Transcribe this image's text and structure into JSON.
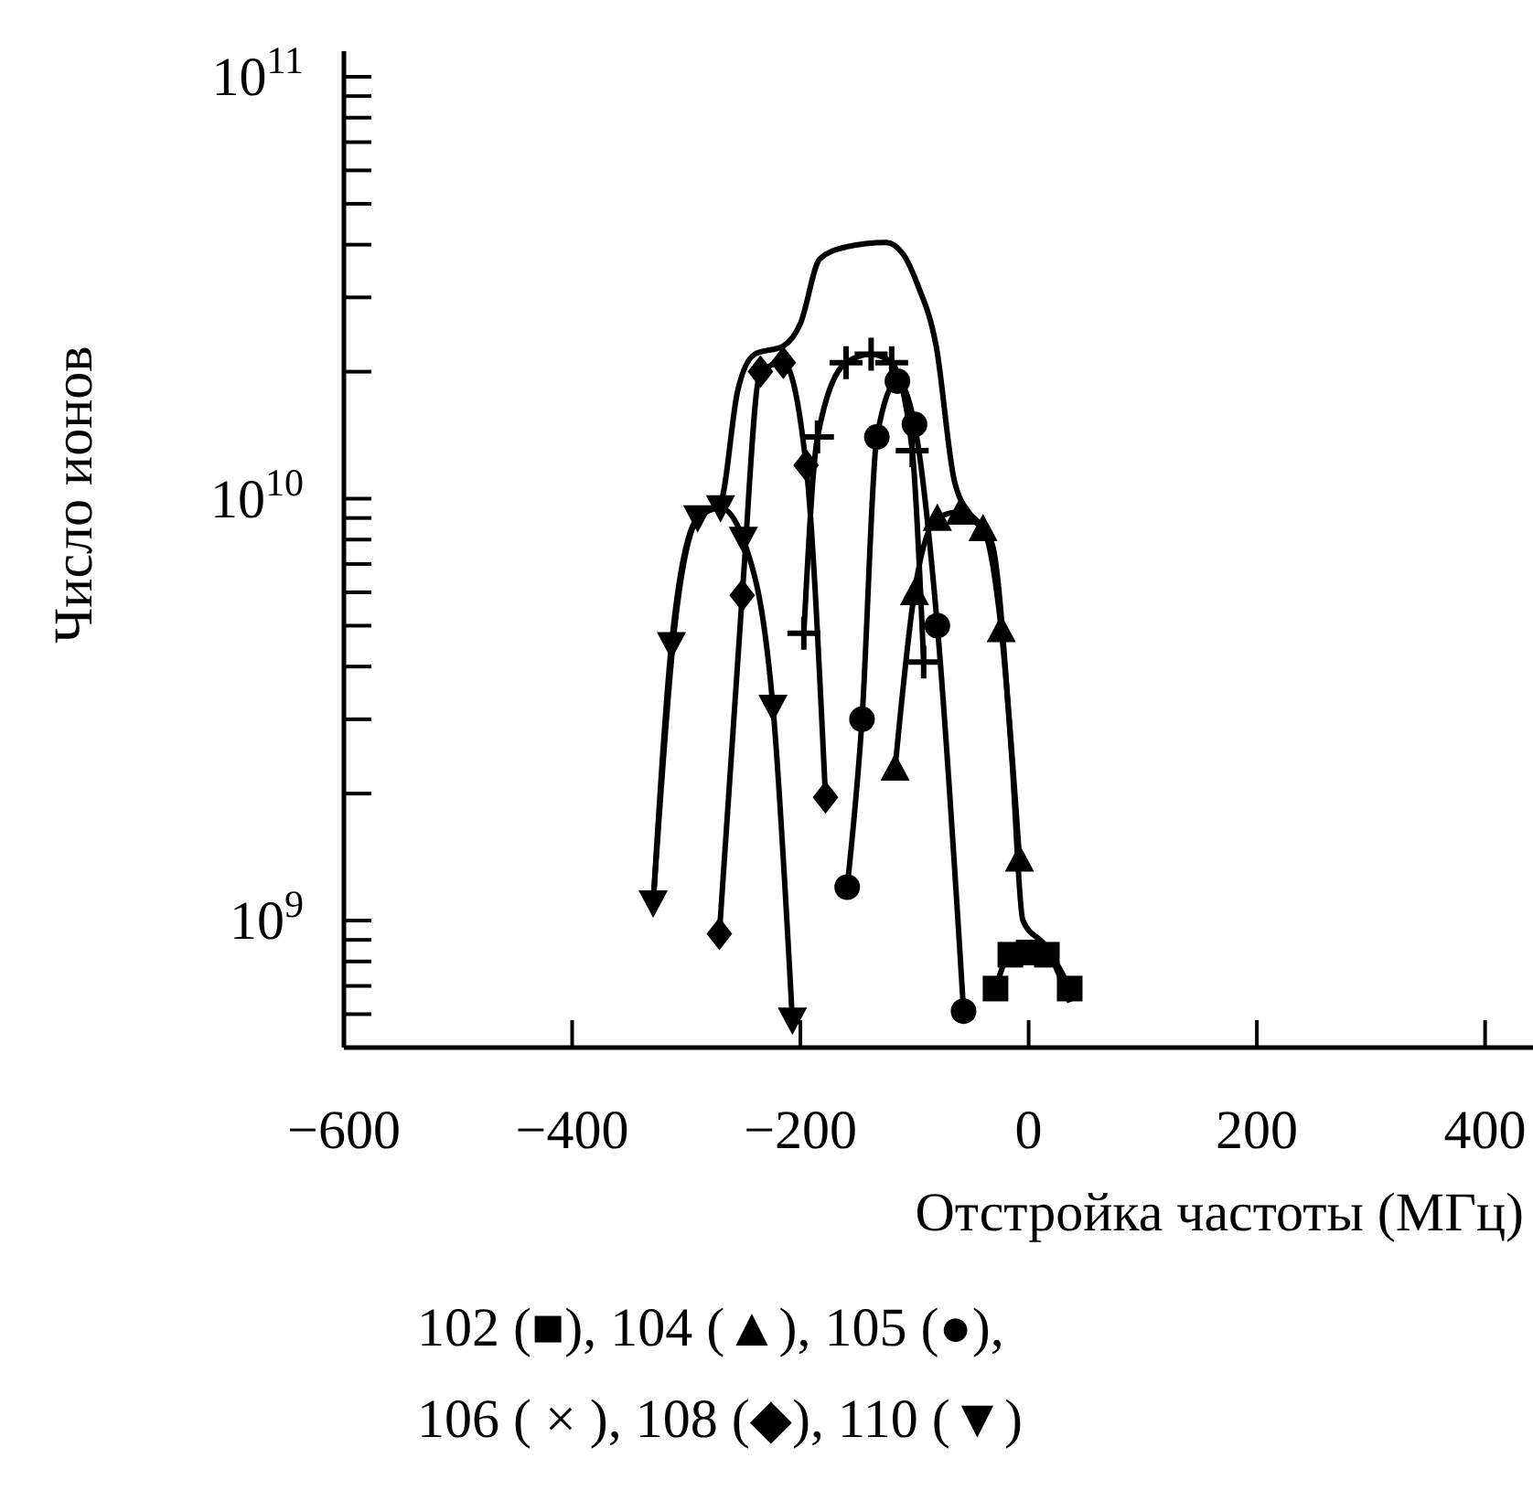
{
  "chart_data": {
    "type": "line",
    "xlabel": "Отстройка частоты (МГц)",
    "ylabel": "Число ионов",
    "log": "y",
    "grid": false,
    "xlim": [
      -600,
      450
    ],
    "xticks": [
      {
        "value": -600,
        "label": "−600"
      },
      {
        "value": -400,
        "label": "−400"
      },
      {
        "value": -200,
        "label": "−200"
      },
      0,
      200,
      400
    ],
    "ylim": [
      500000000.0,
      115000000000.0
    ],
    "yticks": [
      {
        "value": 600000000.0,
        "label": null
      },
      {
        "value": 700000000.0,
        "label": null
      },
      {
        "value": 800000000.0,
        "label": null
      },
      {
        "value": 900000000.0,
        "label": null
      },
      {
        "value": 1000000000.0,
        "label": "10$^{9}$"
      },
      {
        "value": 2000000000.0,
        "label": null
      },
      {
        "value": 3000000000.0,
        "label": null
      },
      {
        "value": 4000000000.0,
        "label": null
      },
      {
        "value": 5000000000.0,
        "label": null
      },
      {
        "value": 6000000000.0,
        "label": null
      },
      {
        "value": 7000000000.0,
        "label": null
      },
      {
        "value": 8000000000.0,
        "label": null
      },
      {
        "value": 9000000000.0,
        "label": null
      },
      {
        "value": 10000000000.0,
        "label": "10$^{10}$"
      },
      {
        "value": 20000000000.0,
        "label": null
      },
      {
        "value": 30000000000.0,
        "label": null
      },
      {
        "value": 40000000000.0,
        "label": null
      },
      {
        "value": 50000000000.0,
        "label": null
      },
      {
        "value": 60000000000.0,
        "label": null
      },
      {
        "value": 70000000000.0,
        "label": null
      },
      {
        "value": 80000000000.0,
        "label": null
      },
      {
        "value": 90000000000.0,
        "label": null
      },
      {
        "value": 100000000000.0,
        "label": "10$^{11}$"
      }
    ],
    "series": [
      {
        "color": "#000000",
        "marker": "none",
        "x": [
          -329,
          -310,
          -290,
          -270,
          -255,
          -240,
          -215,
          -200,
          -183,
          -160,
          -125,
          -110,
          -97,
          -81,
          -65,
          -49,
          -32,
          -15,
          -5,
          16,
          36
        ],
        "values": [
          1100000000.0,
          5000000000.0,
          9000000000.0,
          9800000000.0,
          18000000000.0,
          22000000000.0,
          23000000000.0,
          26000000000.0,
          37000000000.0,
          39500000000.0,
          40500000000.0,
          38000000000.0,
          32000000000.0,
          23000000000.0,
          11000000000.0,
          9000000000.0,
          7800000000.0,
          2500000000.0,
          1000000000.0,
          860000000.0,
          640000000.0
        ]
      },
      {
        "color": "#000000",
        "marker": "square",
        "x": [
          -29,
          -16,
          0,
          16,
          36
        ],
        "values": [
          690000000.0,
          830000000.0,
          840000000.0,
          830000000.0,
          690000000.0
        ]
      },
      {
        "color": "#000000",
        "marker": "triangle",
        "x": [
          -117,
          -100,
          -80,
          -60,
          -40,
          -24,
          -8
        ],
        "values": [
          2300000000.0,
          6000000000.0,
          9000000000.0,
          9300000000.0,
          8500000000.0,
          4900000000.0,
          1400000000.0
        ]
      },
      {
        "color": "#000000",
        "marker": "circle",
        "x": [
          -159,
          -146,
          -133,
          -115,
          -100,
          -80,
          -57
        ],
        "values": [
          1200000000.0,
          3000000000.0,
          14000000000.0,
          19000000000.0,
          15000000000.0,
          5000000000.0,
          610000000.0
        ]
      },
      {
        "color": "#000000",
        "marker": "cross",
        "x": [
          -197,
          -185,
          -160,
          -138,
          -120,
          -102,
          -92
        ],
        "values": [
          4800000000.0,
          14000000000.0,
          21000000000.0,
          22000000000.0,
          21000000000.0,
          13000000000.0,
          4100000000.0
        ]
      },
      {
        "color": "#000000",
        "marker": "diamond",
        "x": [
          -271,
          -251,
          -235,
          -215,
          -195,
          -178
        ],
        "values": [
          930000000.0,
          5900000000.0,
          20000000000.0,
          21000000000.0,
          12000000000.0,
          1960000000.0
        ]
      },
      {
        "color": "#000000",
        "marker": "triangle-down",
        "x": [
          -329,
          -313,
          -290,
          -270,
          -250,
          -224,
          -207
        ],
        "values": [
          1100000000.0,
          4500000000.0,
          9000000000.0,
          9500000000.0,
          8000000000.0,
          3200000000.0,
          580000000.0
        ]
      }
    ],
    "annotations": [
      "102 (■), 104 (▲), 105 (●),",
      "106 ( × ), 108 (◆), 110 (▼)"
    ]
  }
}
